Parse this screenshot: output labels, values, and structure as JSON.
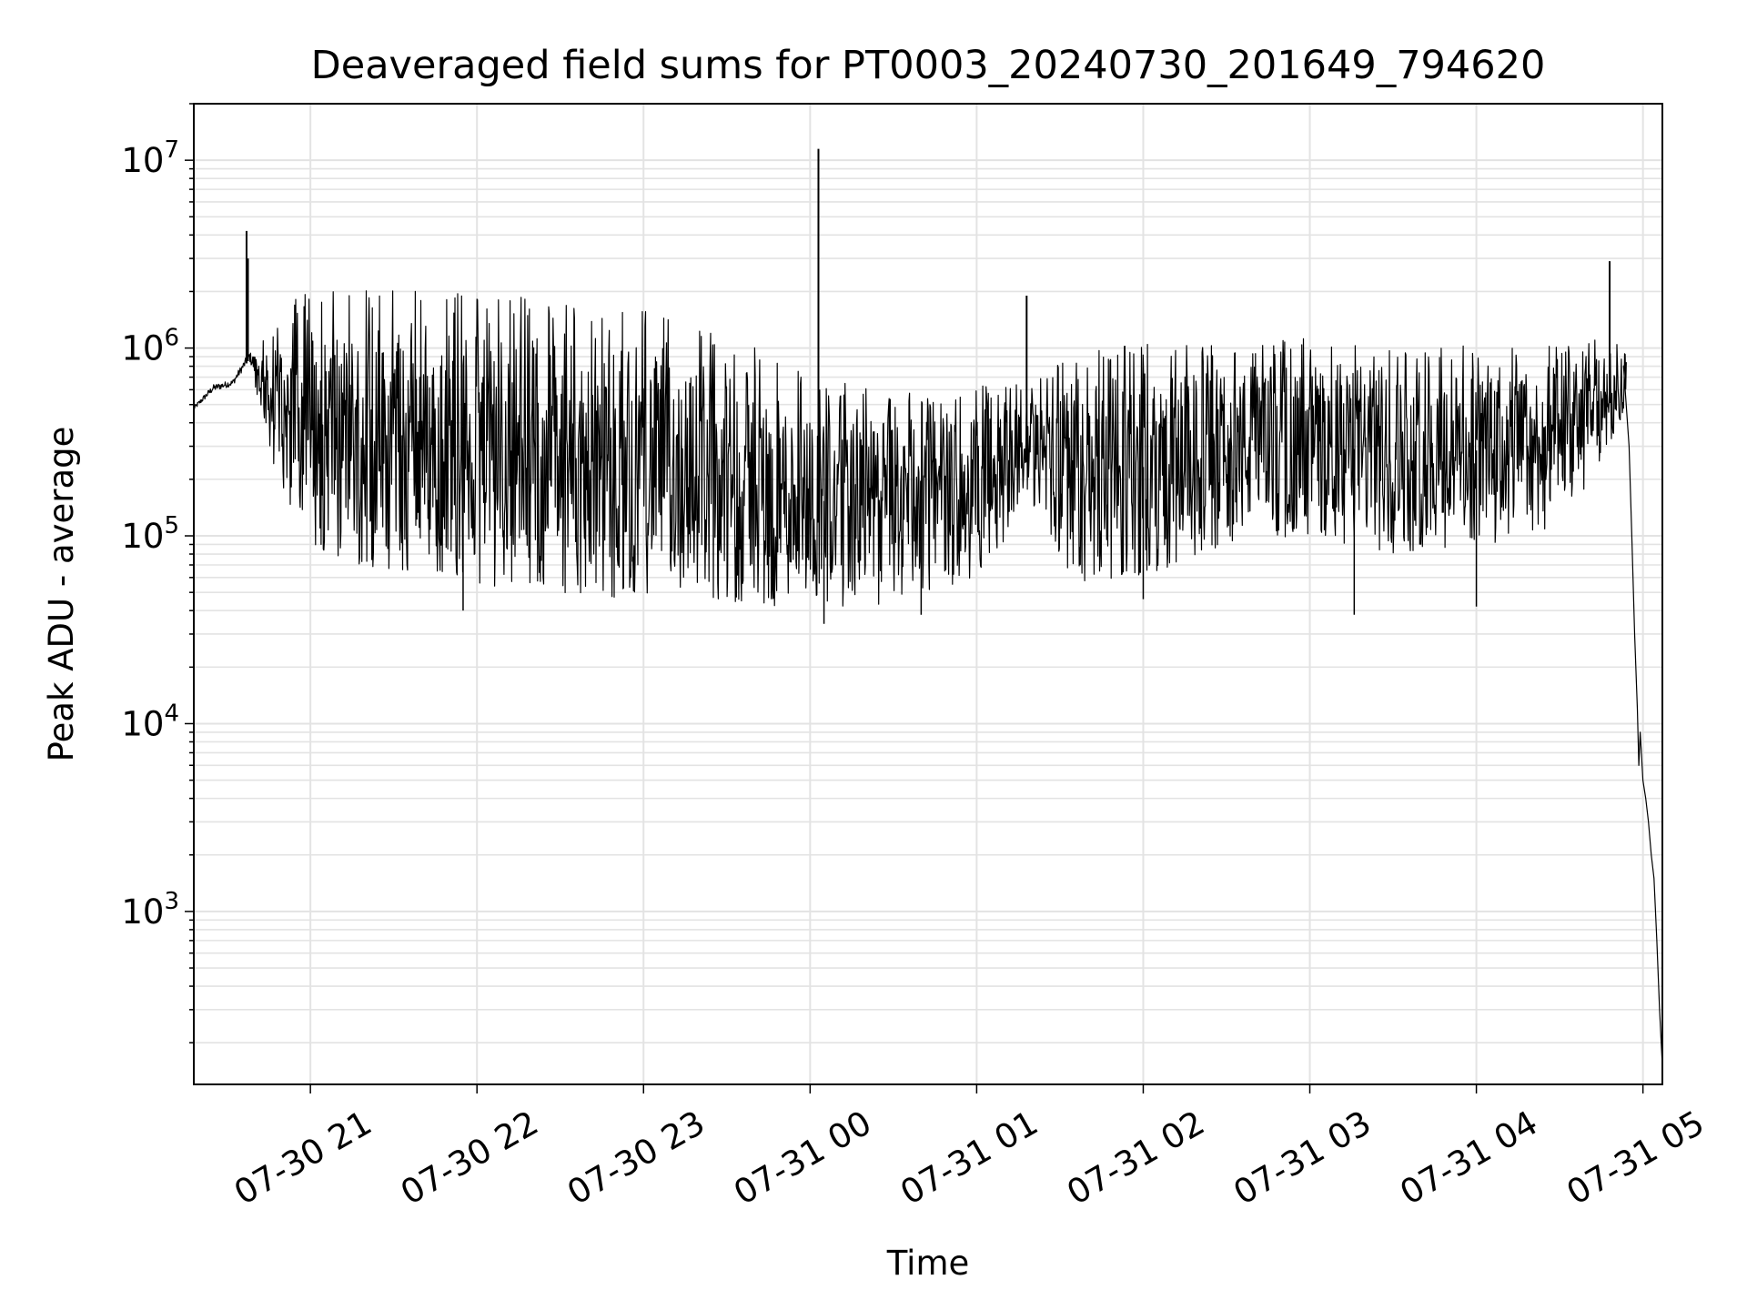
{
  "chart_data": {
    "type": "line",
    "title": "Deaveraged field sums for PT0003_20240730_201649_794620",
    "xlabel": "Time",
    "ylabel": "Peak ADU - average",
    "yscale": "log",
    "ylim": [
      120,
      20000000
    ],
    "xlim": [
      "07-30 20:18",
      "07-31 05:07"
    ],
    "grid": true,
    "line_color": "#000000",
    "grid_color": "#e3e3e3",
    "x_ticks": [
      {
        "t": "07-30 21:00",
        "label": "07-30 21"
      },
      {
        "t": "07-30 22:00",
        "label": "07-30 22"
      },
      {
        "t": "07-30 23:00",
        "label": "07-30 23"
      },
      {
        "t": "07-31 00:00",
        "label": "07-31 00"
      },
      {
        "t": "07-31 01:00",
        "label": "07-31 01"
      },
      {
        "t": "07-31 02:00",
        "label": "07-31 02"
      },
      {
        "t": "07-31 03:00",
        "label": "07-31 03"
      },
      {
        "t": "07-31 04:00",
        "label": "07-31 04"
      },
      {
        "t": "07-31 05:00",
        "label": "07-31 05"
      }
    ],
    "y_ticks": [
      {
        "value": 1000,
        "base": "10",
        "exp": "3"
      },
      {
        "value": 10000,
        "base": "10",
        "exp": "4"
      },
      {
        "value": 100000,
        "base": "10",
        "exp": "5"
      },
      {
        "value": 1000000,
        "base": "10",
        "exp": "6"
      },
      {
        "value": 10000000,
        "base": "10",
        "exp": "7"
      }
    ],
    "envelope": [
      {
        "t": "07-30 20:18",
        "low": 450000,
        "high": 500000
      },
      {
        "t": "07-30 20:25",
        "low": 560000,
        "high": 660000
      },
      {
        "t": "07-30 20:32",
        "low": 600000,
        "high": 700000
      },
      {
        "t": "07-30 20:38",
        "low": 800000,
        "high": 1000000
      },
      {
        "t": "07-30 20:46",
        "low": 250000,
        "high": 1100000
      },
      {
        "t": "07-30 20:55",
        "low": 120000,
        "high": 1600000
      },
      {
        "t": "07-30 21:00",
        "low": 80000,
        "high": 1700000
      },
      {
        "t": "07-30 21:30",
        "low": 65000,
        "high": 1700000
      },
      {
        "t": "07-30 22:00",
        "low": 55000,
        "high": 1600000
      },
      {
        "t": "07-30 22:30",
        "low": 50000,
        "high": 1500000
      },
      {
        "t": "07-30 23:00",
        "low": 45000,
        "high": 1300000
      },
      {
        "t": "07-30 23:30",
        "low": 42000,
        "high": 1000000
      },
      {
        "t": "07-31 00:00",
        "low": 40000,
        "high": 600000
      },
      {
        "t": "07-31 00:30",
        "low": 42000,
        "high": 500000
      },
      {
        "t": "07-31 01:00",
        "low": 60000,
        "high": 550000
      },
      {
        "t": "07-31 01:20",
        "low": 150000,
        "high": 600000
      },
      {
        "t": "07-31 01:35",
        "low": 55000,
        "high": 800000
      },
      {
        "t": "07-31 02:00",
        "low": 60000,
        "high": 900000
      },
      {
        "t": "07-31 02:30",
        "low": 90000,
        "high": 900000
      },
      {
        "t": "07-31 03:00",
        "low": 100000,
        "high": 1000000
      },
      {
        "t": "07-31 03:30",
        "low": 80000,
        "high": 900000
      },
      {
        "t": "07-31 04:00",
        "low": 90000,
        "high": 900000
      },
      {
        "t": "07-31 04:30",
        "low": 100000,
        "high": 900000
      },
      {
        "t": "07-31 04:50",
        "low": 350000,
        "high": 1100000
      },
      {
        "t": "07-31 04:54",
        "low": 500000,
        "high": 900000
      }
    ],
    "spikes": [
      {
        "t": "07-30 20:37",
        "y": 4200000
      },
      {
        "t": "07-30 20:37.5",
        "y": 3000000
      },
      {
        "t": "07-31 00:03",
        "y": 11500000
      },
      {
        "t": "07-31 01:18",
        "y": 1900000
      },
      {
        "t": "07-31 04:48",
        "y": 2900000
      }
    ],
    "dips": [
      {
        "t": "07-30 21:55",
        "y": 40000
      },
      {
        "t": "07-31 00:05",
        "y": 34000
      },
      {
        "t": "07-31 00:40",
        "y": 38000
      },
      {
        "t": "07-31 02:00",
        "y": 46000
      },
      {
        "t": "07-31 03:16",
        "y": 38000
      },
      {
        "t": "07-31 04:00",
        "y": 42000
      }
    ],
    "tail": [
      {
        "t": "07-31 04:53",
        "y": 800000
      },
      {
        "t": "07-31 04:55",
        "y": 300000
      },
      {
        "t": "07-31 04:56",
        "y": 100000
      },
      {
        "t": "07-31 04:57",
        "y": 30000
      },
      {
        "t": "07-31 04:58",
        "y": 12000
      },
      {
        "t": "07-31 04:58.5",
        "y": 6000
      },
      {
        "t": "07-31 04:59",
        "y": 9000
      },
      {
        "t": "07-31 05:00",
        "y": 5000
      },
      {
        "t": "07-31 05:01",
        "y": 4000
      },
      {
        "t": "07-31 05:02",
        "y": 3000
      },
      {
        "t": "07-31 05:03",
        "y": 2000
      },
      {
        "t": "07-31 05:04",
        "y": 1500
      },
      {
        "t": "07-31 05:05",
        "y": 700
      },
      {
        "t": "07-31 05:06",
        "y": 300
      },
      {
        "t": "07-31 05:07",
        "y": 150
      }
    ]
  }
}
